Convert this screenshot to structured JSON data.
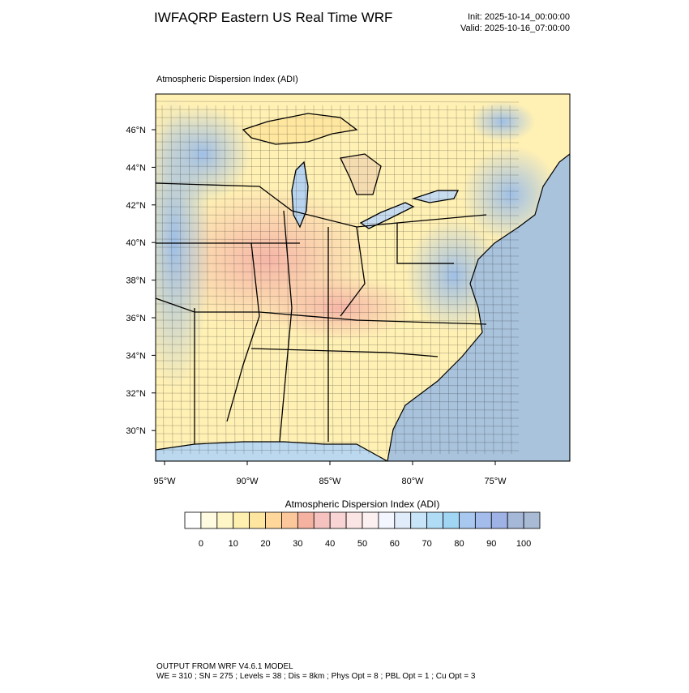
{
  "header": {
    "title": "IWFAQRP Eastern US Real Time WRF",
    "init": "Init: 2025-10-14_00:00:00",
    "valid": "Valid: 2025-10-16_07:00:00"
  },
  "map": {
    "title": "Atmospheric Dispersion Index   (ADI)",
    "lat_labels": [
      "46°N",
      "44°N",
      "42°N",
      "40°N",
      "38°N",
      "36°N",
      "34°N",
      "32°N",
      "30°N"
    ],
    "lon_labels": [
      "95°W",
      "90°W",
      "85°W",
      "80°W",
      "75°W"
    ]
  },
  "colorbar": {
    "title": "Atmospheric Dispersion Index  (ADI)",
    "colors": [
      "#ffffff",
      "#fffbe0",
      "#fff6c8",
      "#fff0b0",
      "#ffe6a0",
      "#ffd79a",
      "#fcc79a",
      "#f6b2a0",
      "#f5c2c0",
      "#f8d4d4",
      "#fbe4e4",
      "#fdf0f0",
      "#f4f6ff",
      "#e0ecfa",
      "#c8e4f8",
      "#b0dcf6",
      "#a0d6f4",
      "#a8c8f0",
      "#a4bcec",
      "#9eb2e6",
      "#a6b8d8",
      "#a8bad4"
    ],
    "ticks": [
      0,
      10,
      20,
      30,
      40,
      50,
      60,
      70,
      80,
      90,
      100
    ]
  },
  "footer": {
    "line1": "OUTPUT FROM WRF V4.6.1 MODEL",
    "line2": "WE = 310 ; SN = 275 ; Levels = 38 ; Dis = 8km ; Phys Opt = 8 ; PBL Opt = 1 ; Cu Opt = 3"
  }
}
